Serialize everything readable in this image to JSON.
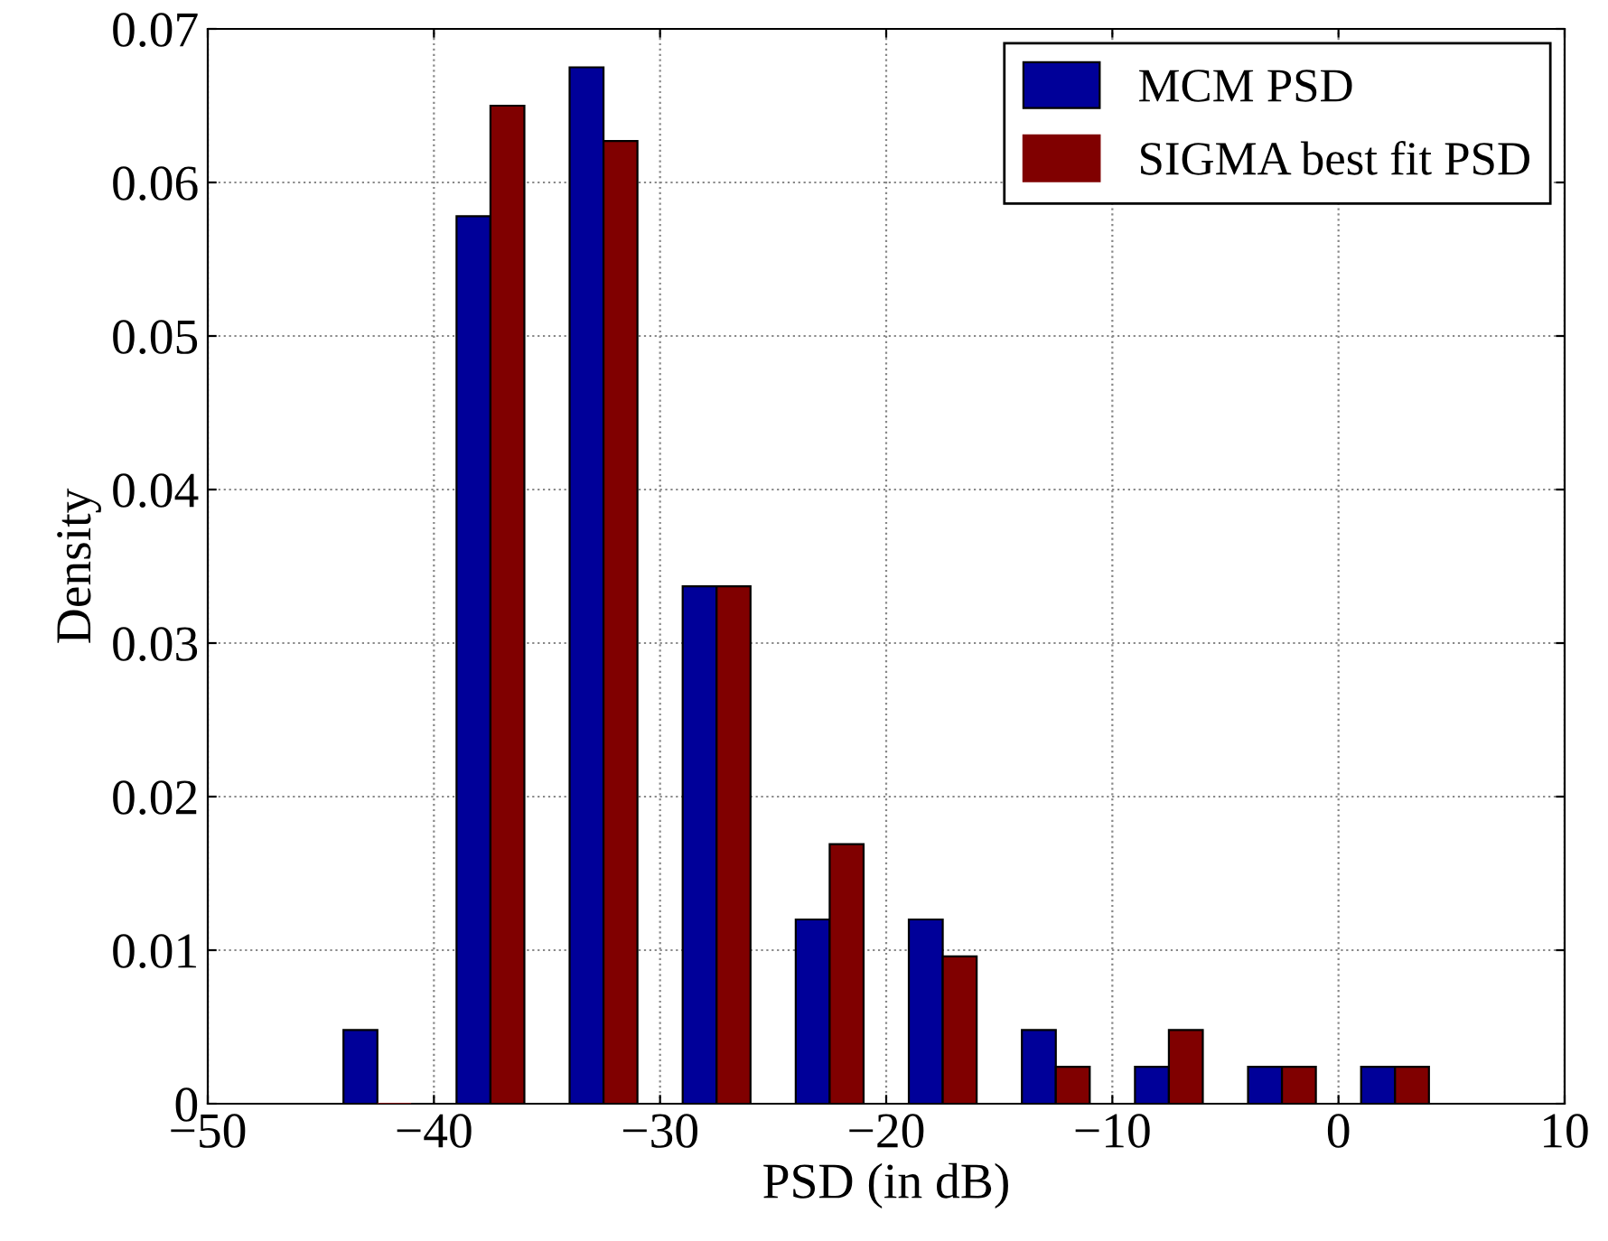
{
  "chart_data": {
    "type": "bar",
    "xlabel": "PSD (in dB)",
    "ylabel": "Density",
    "x": [
      -42.5,
      -37.5,
      -32.5,
      -27.5,
      -22.5,
      -17.5,
      -12.5,
      -7.5,
      -2.5,
      2.5
    ],
    "series": [
      {
        "name": "MCM PSD",
        "color": "#000099",
        "values": [
          0.0048,
          0.0578,
          0.0675,
          0.0337,
          0.012,
          0.012,
          0.0048,
          0.0024,
          0.0024,
          0.0024
        ]
      },
      {
        "name": "SIGMA best fit PSD",
        "color": "#800000",
        "values": [
          0,
          0.065,
          0.0627,
          0.0337,
          0.0169,
          0.0096,
          0.0024,
          0.0048,
          0.0024,
          0.0024
        ]
      }
    ],
    "xlim": [
      -50,
      10
    ],
    "xticks": [
      -50,
      -40,
      -30,
      -20,
      -10,
      0,
      10
    ],
    "ylim": [
      0,
      0.07
    ],
    "yticks": [
      0,
      0.01,
      0.02,
      0.03,
      0.04,
      0.05,
      0.06,
      0.07
    ],
    "grid": true,
    "legend": "top right"
  }
}
